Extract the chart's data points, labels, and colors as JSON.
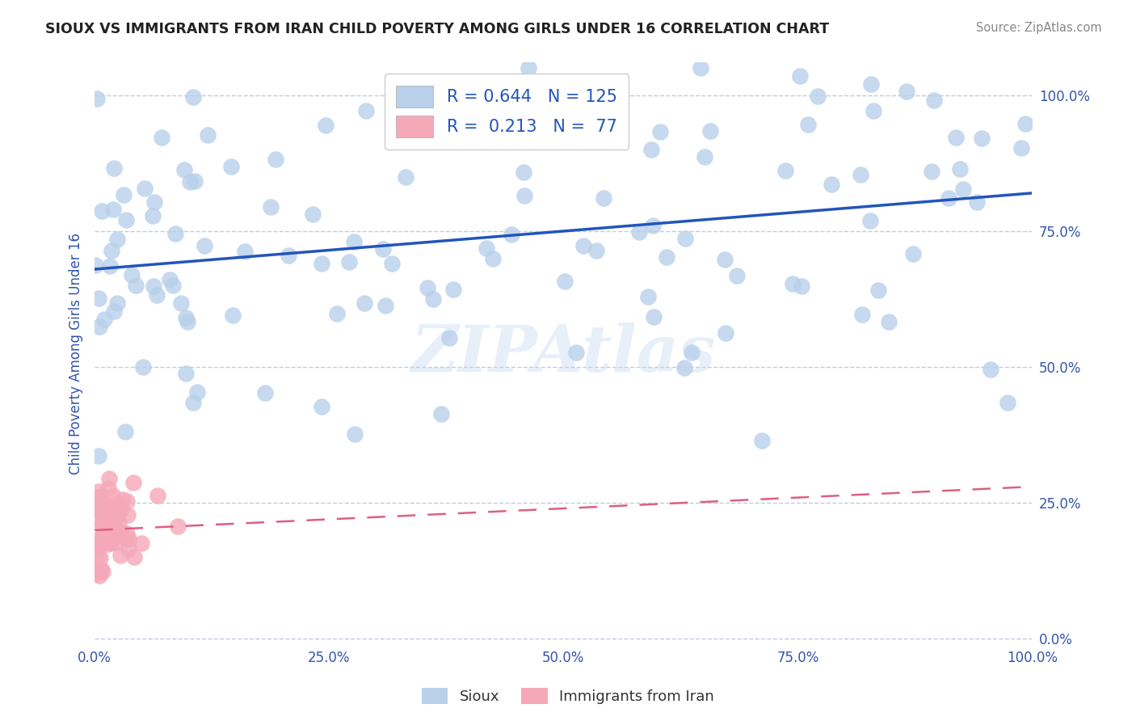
{
  "title": "SIOUX VS IMMIGRANTS FROM IRAN CHILD POVERTY AMONG GIRLS UNDER 16 CORRELATION CHART",
  "source": "Source: ZipAtlas.com",
  "ylabel": "Child Poverty Among Girls Under 16",
  "sioux_R": 0.644,
  "sioux_N": 125,
  "iran_R": 0.213,
  "iran_N": 77,
  "sioux_color": "#b8d0ea",
  "sioux_line_color": "#2255bb",
  "iran_color": "#f5a8b8",
  "iran_line_color": "#dd6080",
  "watermark": "ZIPAtlas",
  "background_color": "#ffffff",
  "grid_color": "#c0cce0",
  "title_color": "#222222",
  "axis_label_color": "#3355aa",
  "tick_label_color": "#3355aa",
  "legend_label_sioux": "Sioux",
  "legend_label_iran": "Immigrants from Iran",
  "yticks": [
    0.0,
    0.25,
    0.5,
    0.75,
    1.0
  ],
  "ytick_labels": [
    "0.0%",
    "25.0%",
    "50.0%",
    "75.0%",
    "100.0%"
  ],
  "xticks": [
    0.0,
    0.25,
    0.5,
    0.75,
    1.0
  ],
  "xtick_labels": [
    "0.0%",
    "25.0%",
    "50.0%",
    "75.0%",
    "100.0%"
  ],
  "sioux_trend_x0": 0.0,
  "sioux_trend_y0": 0.68,
  "sioux_trend_x1": 1.0,
  "sioux_trend_y1": 0.82,
  "iran_trend_x0": 0.0,
  "iran_trend_y0": 0.2,
  "iran_trend_x1": 1.0,
  "iran_trend_y1": 0.28
}
